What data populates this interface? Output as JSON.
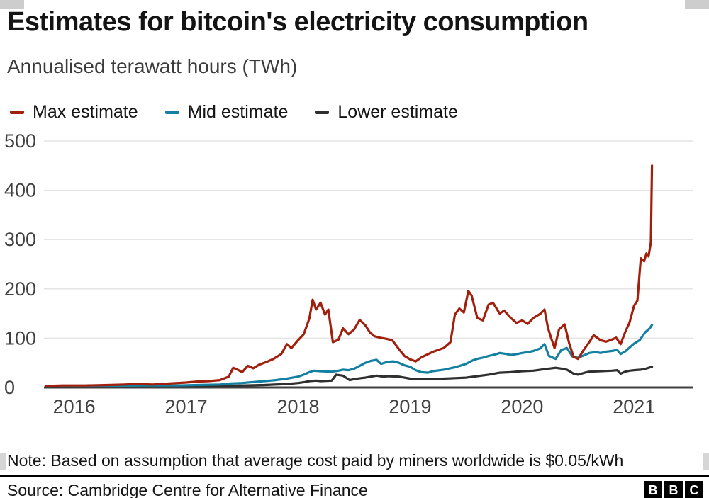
{
  "chart_data": {
    "type": "line",
    "title": "Estimates for bitcoin's electricity consumption",
    "subtitle": "Annualised terawatt hours (TWh)",
    "xlabel": "",
    "ylabel": "Annualised terawatt hours (TWh)",
    "x_ticks": [
      2016,
      2017,
      2018,
      2019,
      2020,
      2021
    ],
    "y_ticks": [
      0,
      100,
      200,
      300,
      400,
      500
    ],
    "x_range": [
      2015.73,
      2021.53
    ],
    "y_range": [
      0,
      500
    ],
    "grid": "horizontal",
    "legend_position": "top",
    "colors": {
      "grid": "#e4e4e4",
      "axis": "#404040",
      "tick_text": "#404040"
    },
    "series": [
      {
        "name": "Max estimate",
        "color": "#a1200d",
        "points": [
          [
            2015.75,
            3
          ],
          [
            2015.9,
            4
          ],
          [
            2016.1,
            4
          ],
          [
            2016.3,
            5
          ],
          [
            2016.45,
            6
          ],
          [
            2016.55,
            7
          ],
          [
            2016.7,
            6
          ],
          [
            2016.85,
            8
          ],
          [
            2017.0,
            10
          ],
          [
            2017.1,
            12
          ],
          [
            2017.2,
            13
          ],
          [
            2017.3,
            15
          ],
          [
            2017.38,
            22
          ],
          [
            2017.42,
            40
          ],
          [
            2017.46,
            36
          ],
          [
            2017.5,
            31
          ],
          [
            2017.55,
            44
          ],
          [
            2017.6,
            39
          ],
          [
            2017.65,
            46
          ],
          [
            2017.72,
            52
          ],
          [
            2017.78,
            58
          ],
          [
            2017.85,
            68
          ],
          [
            2017.9,
            88
          ],
          [
            2017.94,
            80
          ],
          [
            2018.0,
            96
          ],
          [
            2018.05,
            108
          ],
          [
            2018.1,
            140
          ],
          [
            2018.13,
            178
          ],
          [
            2018.16,
            158
          ],
          [
            2018.2,
            172
          ],
          [
            2018.24,
            148
          ],
          [
            2018.27,
            158
          ],
          [
            2018.31,
            92
          ],
          [
            2018.36,
            97
          ],
          [
            2018.4,
            120
          ],
          [
            2018.45,
            108
          ],
          [
            2018.5,
            118
          ],
          [
            2018.55,
            137
          ],
          [
            2018.6,
            126
          ],
          [
            2018.64,
            112
          ],
          [
            2018.68,
            104
          ],
          [
            2018.73,
            101
          ],
          [
            2018.78,
            99
          ],
          [
            2018.84,
            96
          ],
          [
            2018.9,
            78
          ],
          [
            2018.95,
            64
          ],
          [
            2019.0,
            57
          ],
          [
            2019.05,
            53
          ],
          [
            2019.1,
            61
          ],
          [
            2019.2,
            72
          ],
          [
            2019.3,
            80
          ],
          [
            2019.36,
            92
          ],
          [
            2019.4,
            148
          ],
          [
            2019.44,
            160
          ],
          [
            2019.48,
            152
          ],
          [
            2019.52,
            196
          ],
          [
            2019.55,
            186
          ],
          [
            2019.6,
            141
          ],
          [
            2019.65,
            136
          ],
          [
            2019.7,
            168
          ],
          [
            2019.74,
            172
          ],
          [
            2019.8,
            150
          ],
          [
            2019.84,
            156
          ],
          [
            2019.9,
            141
          ],
          [
            2019.95,
            131
          ],
          [
            2020.0,
            136
          ],
          [
            2020.05,
            129
          ],
          [
            2020.1,
            141
          ],
          [
            2020.16,
            149
          ],
          [
            2020.2,
            158
          ],
          [
            2020.23,
            122
          ],
          [
            2020.26,
            100
          ],
          [
            2020.29,
            80
          ],
          [
            2020.33,
            118
          ],
          [
            2020.38,
            128
          ],
          [
            2020.42,
            90
          ],
          [
            2020.46,
            62
          ],
          [
            2020.5,
            58
          ],
          [
            2020.55,
            76
          ],
          [
            2020.6,
            92
          ],
          [
            2020.64,
            106
          ],
          [
            2020.7,
            96
          ],
          [
            2020.75,
            93
          ],
          [
            2020.8,
            97
          ],
          [
            2020.84,
            101
          ],
          [
            2020.88,
            88
          ],
          [
            2020.92,
            112
          ],
          [
            2020.96,
            132
          ],
          [
            2021.0,
            166
          ],
          [
            2021.03,
            176
          ],
          [
            2021.06,
            262
          ],
          [
            2021.09,
            256
          ],
          [
            2021.11,
            272
          ],
          [
            2021.13,
            266
          ],
          [
            2021.15,
            295
          ],
          [
            2021.16,
            450
          ]
        ]
      },
      {
        "name": "Mid estimate",
        "color": "#1380a1",
        "points": [
          [
            2015.75,
            2
          ],
          [
            2016.0,
            3
          ],
          [
            2016.3,
            3
          ],
          [
            2016.6,
            4
          ],
          [
            2016.9,
            4
          ],
          [
            2017.1,
            5
          ],
          [
            2017.3,
            6
          ],
          [
            2017.4,
            8
          ],
          [
            2017.5,
            9
          ],
          [
            2017.6,
            11
          ],
          [
            2017.7,
            13
          ],
          [
            2017.8,
            15
          ],
          [
            2017.9,
            18
          ],
          [
            2018.0,
            22
          ],
          [
            2018.05,
            26
          ],
          [
            2018.1,
            31
          ],
          [
            2018.14,
            34
          ],
          [
            2018.2,
            33
          ],
          [
            2018.3,
            32
          ],
          [
            2018.36,
            34
          ],
          [
            2018.4,
            36
          ],
          [
            2018.45,
            35
          ],
          [
            2018.5,
            38
          ],
          [
            2018.55,
            44
          ],
          [
            2018.6,
            50
          ],
          [
            2018.65,
            54
          ],
          [
            2018.7,
            56
          ],
          [
            2018.74,
            48
          ],
          [
            2018.8,
            52
          ],
          [
            2018.85,
            53
          ],
          [
            2018.9,
            50
          ],
          [
            2018.95,
            45
          ],
          [
            2019.0,
            42
          ],
          [
            2019.05,
            35
          ],
          [
            2019.1,
            31
          ],
          [
            2019.16,
            30
          ],
          [
            2019.2,
            33
          ],
          [
            2019.3,
            36
          ],
          [
            2019.4,
            41
          ],
          [
            2019.46,
            45
          ],
          [
            2019.5,
            48
          ],
          [
            2019.56,
            55
          ],
          [
            2019.6,
            58
          ],
          [
            2019.66,
            61
          ],
          [
            2019.7,
            64
          ],
          [
            2019.76,
            67
          ],
          [
            2019.8,
            70
          ],
          [
            2019.86,
            68
          ],
          [
            2019.9,
            66
          ],
          [
            2019.96,
            68
          ],
          [
            2020.0,
            70
          ],
          [
            2020.06,
            72
          ],
          [
            2020.1,
            74
          ],
          [
            2020.16,
            79
          ],
          [
            2020.2,
            88
          ],
          [
            2020.24,
            64
          ],
          [
            2020.3,
            58
          ],
          [
            2020.35,
            76
          ],
          [
            2020.4,
            80
          ],
          [
            2020.45,
            63
          ],
          [
            2020.5,
            60
          ],
          [
            2020.56,
            66
          ],
          [
            2020.6,
            70
          ],
          [
            2020.66,
            72
          ],
          [
            2020.7,
            70
          ],
          [
            2020.76,
            73
          ],
          [
            2020.8,
            74
          ],
          [
            2020.85,
            76
          ],
          [
            2020.88,
            68
          ],
          [
            2020.92,
            73
          ],
          [
            2020.96,
            81
          ],
          [
            2021.0,
            89
          ],
          [
            2021.05,
            96
          ],
          [
            2021.1,
            112
          ],
          [
            2021.14,
            120
          ],
          [
            2021.16,
            127
          ]
        ]
      },
      {
        "name": "Lower estimate",
        "color": "#2f2f2f",
        "points": [
          [
            2015.75,
            1
          ],
          [
            2016.0,
            2
          ],
          [
            2016.5,
            2
          ],
          [
            2017.0,
            3
          ],
          [
            2017.3,
            3
          ],
          [
            2017.5,
            4
          ],
          [
            2017.7,
            5
          ],
          [
            2017.9,
            7
          ],
          [
            2018.0,
            9
          ],
          [
            2018.06,
            11
          ],
          [
            2018.1,
            13
          ],
          [
            2018.16,
            14
          ],
          [
            2018.2,
            13
          ],
          [
            2018.3,
            14
          ],
          [
            2018.34,
            26
          ],
          [
            2018.4,
            24
          ],
          [
            2018.46,
            15
          ],
          [
            2018.5,
            17
          ],
          [
            2018.56,
            19
          ],
          [
            2018.6,
            20
          ],
          [
            2018.7,
            24
          ],
          [
            2018.76,
            22
          ],
          [
            2018.8,
            23
          ],
          [
            2018.9,
            22
          ],
          [
            2019.0,
            18
          ],
          [
            2019.1,
            17
          ],
          [
            2019.2,
            17
          ],
          [
            2019.3,
            18
          ],
          [
            2019.4,
            19
          ],
          [
            2019.5,
            20
          ],
          [
            2019.6,
            23
          ],
          [
            2019.7,
            26
          ],
          [
            2019.8,
            30
          ],
          [
            2019.9,
            31
          ],
          [
            2020.0,
            33
          ],
          [
            2020.1,
            34
          ],
          [
            2020.2,
            37
          ],
          [
            2020.3,
            40
          ],
          [
            2020.36,
            38
          ],
          [
            2020.4,
            36
          ],
          [
            2020.46,
            28
          ],
          [
            2020.5,
            26
          ],
          [
            2020.56,
            30
          ],
          [
            2020.6,
            32
          ],
          [
            2020.7,
            33
          ],
          [
            2020.8,
            34
          ],
          [
            2020.85,
            35
          ],
          [
            2020.88,
            28
          ],
          [
            2020.92,
            32
          ],
          [
            2020.96,
            34
          ],
          [
            2021.0,
            35
          ],
          [
            2021.06,
            36
          ],
          [
            2021.1,
            38
          ],
          [
            2021.16,
            42
          ]
        ]
      }
    ]
  },
  "footer": {
    "note": "Note: Based on assumption that average cost paid by miners worldwide is $0.05/kWh",
    "source": "Source: Cambridge Centre for Alternative Finance",
    "logo_letters": [
      "B",
      "B",
      "C"
    ]
  }
}
